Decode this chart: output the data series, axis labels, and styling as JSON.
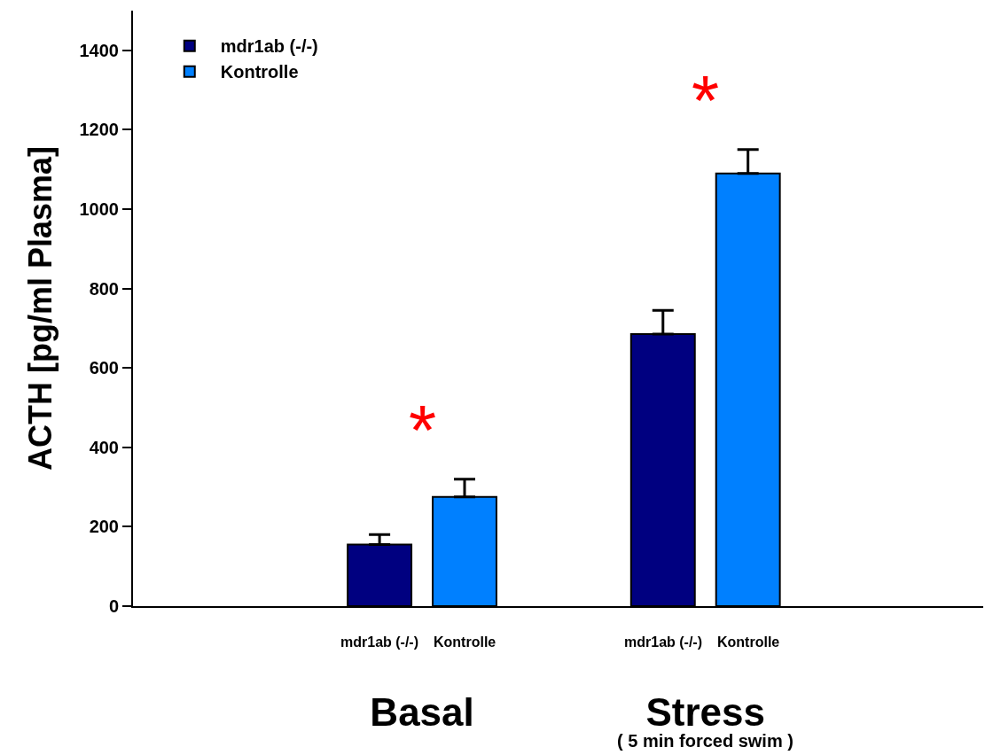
{
  "chart_data": {
    "type": "bar",
    "ylabel": "ACTH [pg/ml Plasma]",
    "categories": [
      "Basal",
      "Stress"
    ],
    "series": [
      {
        "name": "mdr1ab (-/-)",
        "color": "#000080",
        "values": [
          155,
          685
        ],
        "errors": [
          [
            155,
            180
          ],
          [
            685,
            745
          ]
        ]
      },
      {
        "name": "Kontrolle",
        "color": "#0080ff",
        "values": [
          275,
          1090
        ],
        "errors": [
          [
            275,
            320
          ],
          [
            1090,
            1150
          ]
        ]
      }
    ],
    "ylim": [
      0,
      1500
    ],
    "yticks": [
      0,
      200,
      400,
      600,
      800,
      1000,
      1200,
      1400
    ],
    "grid": false,
    "legend": "top left",
    "annotations": [
      "*",
      "*",
      "mdr1ab (-/-)",
      "Kontrolle",
      "mdr1ab (-/-)",
      "Kontrolle",
      "( 5 min forced swim )"
    ]
  }
}
